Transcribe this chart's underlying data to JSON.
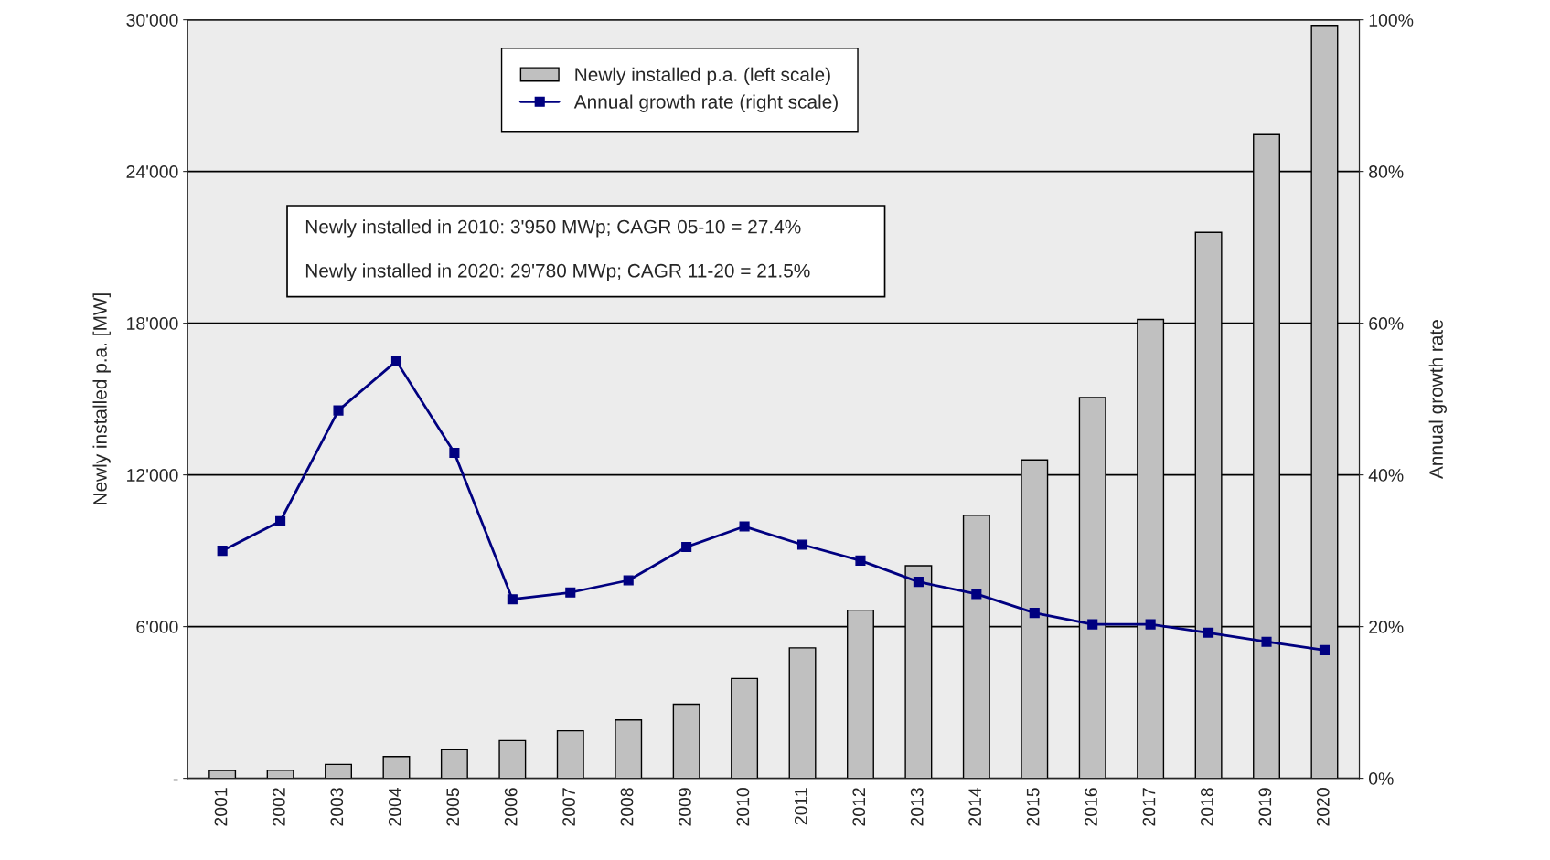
{
  "chart_data": {
    "type": "bar",
    "xlabel": null,
    "ylabel": "Newly installed p.a. [MW]",
    "y2label": "Annual growth rate",
    "categories": [
      "2001",
      "2002",
      "2003",
      "2004",
      "2005",
      "2006",
      "2007",
      "2008",
      "2009",
      "2010",
      "2011",
      "2012",
      "2013",
      "2014",
      "2015",
      "2016",
      "2017",
      "2018",
      "2019",
      "2020"
    ],
    "series": [
      {
        "name": "Newly installed p.a. (left scale)",
        "color": "#c0c0c0",
        "values": [
          310,
          320,
          550,
          860,
          1130,
          1490,
          1880,
          2310,
          2930,
          3950,
          5160,
          6650,
          8410,
          10400,
          12590,
          15060,
          18150,
          21590,
          25460,
          29780
        ]
      },
      {
        "name": "Annual growth rate (right scale)",
        "type": "line",
        "axis": "y2",
        "color": "#000080",
        "marker": "square",
        "values": [
          30.0,
          33.9,
          48.5,
          55.0,
          42.9,
          23.6,
          24.5,
          26.1,
          30.5,
          33.2,
          30.8,
          28.7,
          25.9,
          24.3,
          21.8,
          20.3,
          20.3,
          19.2,
          18.0,
          16.9
        ]
      }
    ],
    "ylim": [
      0,
      30000
    ],
    "yticks": [
      {
        "value": 0,
        "label": "-"
      },
      {
        "value": 6000,
        "label": "6'000"
      },
      {
        "value": 12000,
        "label": "12'000"
      },
      {
        "value": 18000,
        "label": "18'000"
      },
      {
        "value": 24000,
        "label": "24'000"
      },
      {
        "value": 30000,
        "label": "30'000"
      }
    ],
    "y2lim": [
      0,
      100
    ],
    "y2ticks": [
      {
        "value": 0,
        "label": "0%"
      },
      {
        "value": 20,
        "label": "20%"
      },
      {
        "value": 40,
        "label": "40%"
      },
      {
        "value": 60,
        "label": "60%"
      },
      {
        "value": 80,
        "label": "80%"
      },
      {
        "value": 100,
        "label": "100%"
      }
    ],
    "grid": "y",
    "legend": "top",
    "annotations": [
      "Newly installed in 2010: 3'950 MWp; CAGR 05-10 = 27.4%",
      "Newly installed in 2020: 29'780 MWp; CAGR 11-20 = 21.5%"
    ]
  }
}
